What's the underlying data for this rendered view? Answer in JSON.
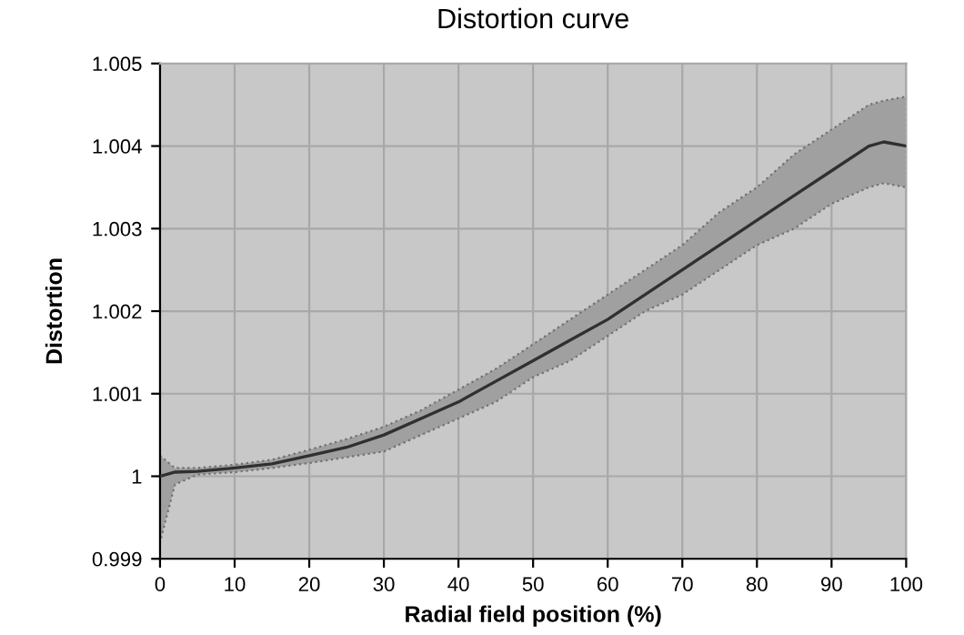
{
  "chart_data": {
    "type": "line",
    "title": "Distortion curve",
    "xlabel": "Radial field position (%)",
    "ylabel": "Distortion",
    "xlim": [
      0,
      100
    ],
    "xticks": [
      0,
      10,
      20,
      30,
      40,
      50,
      60,
      70,
      80,
      90,
      100
    ],
    "ylim": [
      0.999,
      1.005
    ],
    "yticks": [
      {
        "value": 0.999,
        "label": "0.999"
      },
      {
        "value": 1.0,
        "label": "1"
      },
      {
        "value": 1.001,
        "label": "1.001"
      },
      {
        "value": 1.002,
        "label": "1.002"
      },
      {
        "value": 1.003,
        "label": "1.003"
      },
      {
        "value": 1.004,
        "label": "1.004"
      },
      {
        "value": 1.005,
        "label": "1.005"
      }
    ],
    "grid": true,
    "marker": "none",
    "line_style": "solid",
    "series": [
      {
        "color": "#303030",
        "x": [
          0,
          2,
          5,
          10,
          15,
          20,
          25,
          30,
          35,
          40,
          45,
          50,
          55,
          60,
          65,
          70,
          75,
          80,
          85,
          90,
          95,
          97,
          100
        ],
        "values": [
          1.0,
          1.00005,
          1.00006,
          1.0001,
          1.00015,
          1.00025,
          1.00035,
          1.0005,
          1.0007,
          1.0009,
          1.00115,
          1.0014,
          1.00165,
          1.0019,
          1.0022,
          1.0025,
          1.0028,
          1.0031,
          1.0034,
          1.0037,
          1.004,
          1.00405,
          1.004
        ],
        "upper": [
          1.00025,
          1.0001,
          1.0001,
          1.00014,
          1.0002,
          1.00032,
          1.00045,
          1.0006,
          1.0008,
          1.00105,
          1.0013,
          1.0016,
          1.0019,
          1.0022,
          1.0025,
          1.0028,
          1.0032,
          1.0035,
          1.0039,
          1.0042,
          1.0045,
          1.00455,
          1.0046
        ],
        "lower": [
          0.9992,
          0.9999,
          1.00002,
          1.00005,
          1.0001,
          1.00016,
          1.00023,
          1.0003,
          1.0005,
          1.0007,
          1.0009,
          1.0012,
          1.0014,
          1.0017,
          1.002,
          1.0022,
          1.0025,
          1.0028,
          1.003,
          1.0033,
          1.0035,
          1.00355,
          1.0035
        ]
      }
    ]
  }
}
